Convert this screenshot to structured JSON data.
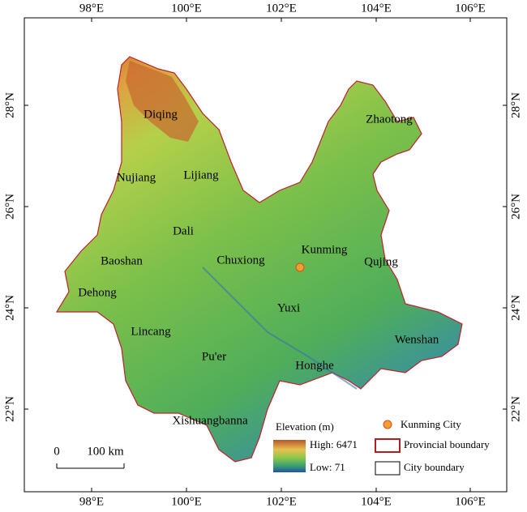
{
  "map": {
    "longitude_labels": [
      "98°E",
      "100°E",
      "102°E",
      "104°E",
      "106°E"
    ],
    "latitude_labels": [
      "28°N",
      "26°N",
      "24°N",
      "22°N"
    ],
    "cities": [
      "Diqing",
      "Zhaotong",
      "Nujiang",
      "Lijiang",
      "Dali",
      "Kunming",
      "Baoshan",
      "Chuxiong",
      "Qujing",
      "Dehong",
      "Yuxi",
      "Lincang",
      "Wenshan",
      "Pu'er",
      "Honghe",
      "Xishuangbanna"
    ],
    "scale_bar": {
      "start": "0",
      "length": "100 km"
    },
    "legend": {
      "title": "Elevation (m)",
      "high": "High: 6471",
      "low": "Low: 71",
      "point": "Kunming City",
      "provincial": "Provincial boundary",
      "city": "City boundary"
    }
  }
}
